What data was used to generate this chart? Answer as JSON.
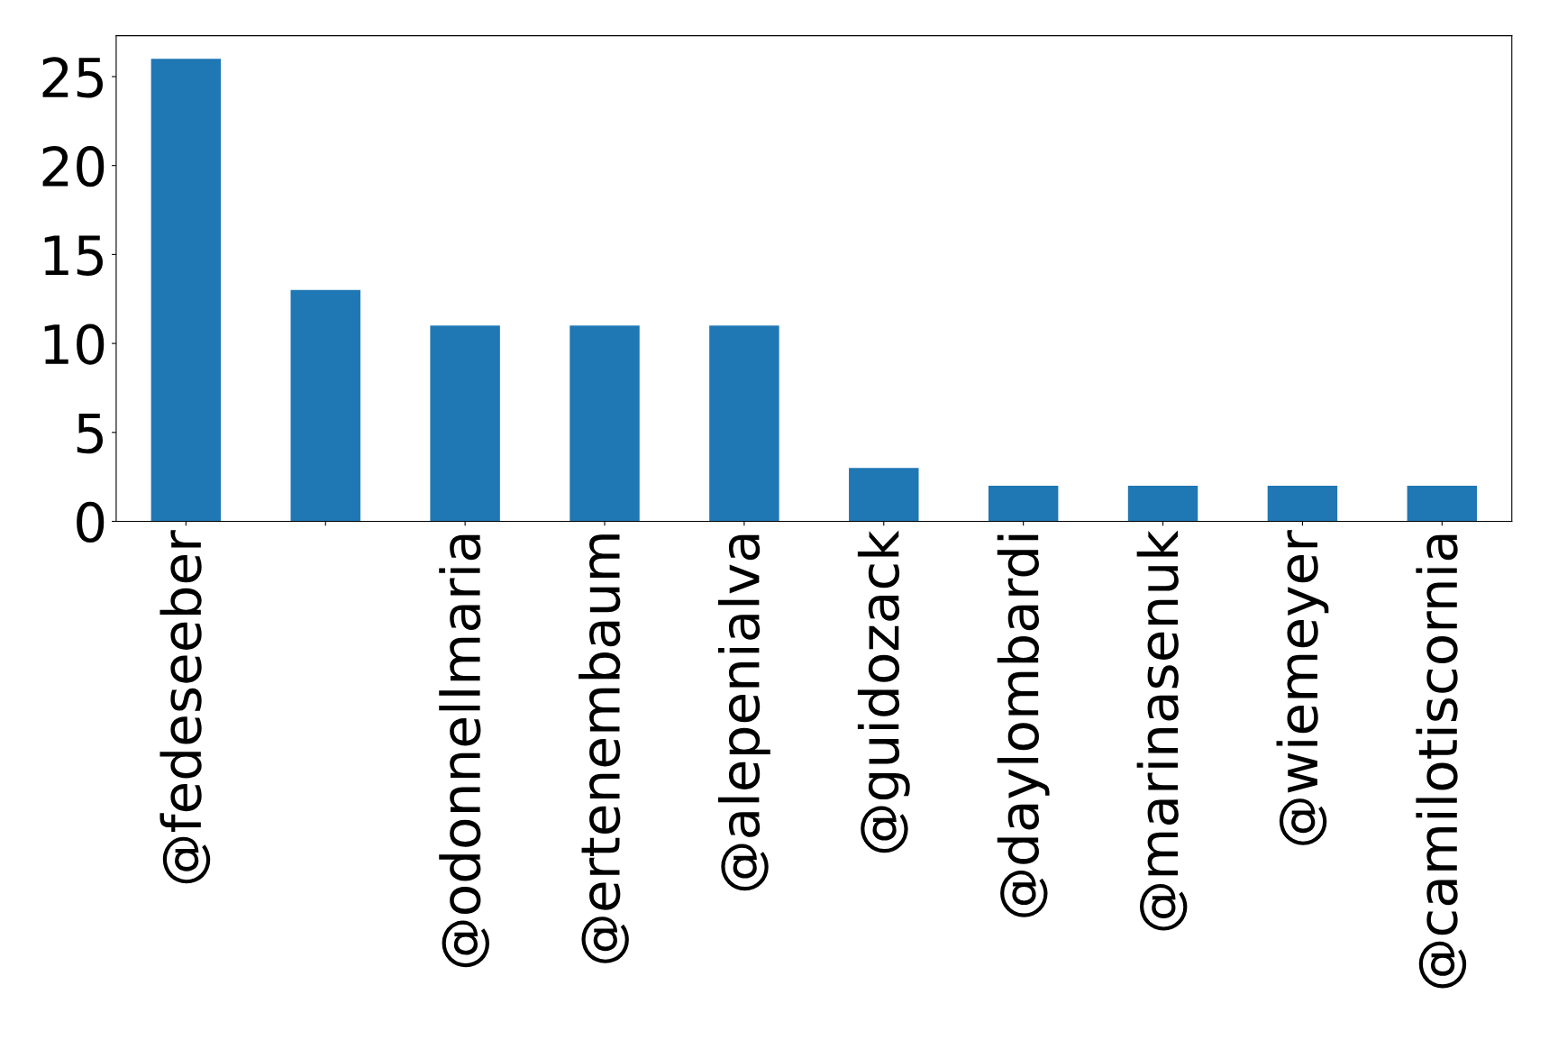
{
  "chart_data": {
    "type": "bar",
    "categories": [
      "@fedeseeber",
      null,
      "@odonnellmaria",
      "@ertenembaum",
      "@alepenialva",
      "@guidozack",
      "@daylombardi",
      "@marinasenuk",
      "@wiemeyer",
      "@camilotiscornia"
    ],
    "values": [
      26,
      13,
      11,
      11,
      11,
      3,
      2,
      2,
      2,
      2
    ],
    "color": "#1f77b4",
    "ylim": [
      0,
      27.3
    ],
    "yticks": [
      0,
      5,
      10,
      15,
      20,
      25
    ],
    "grid": false,
    "legend": false
  }
}
